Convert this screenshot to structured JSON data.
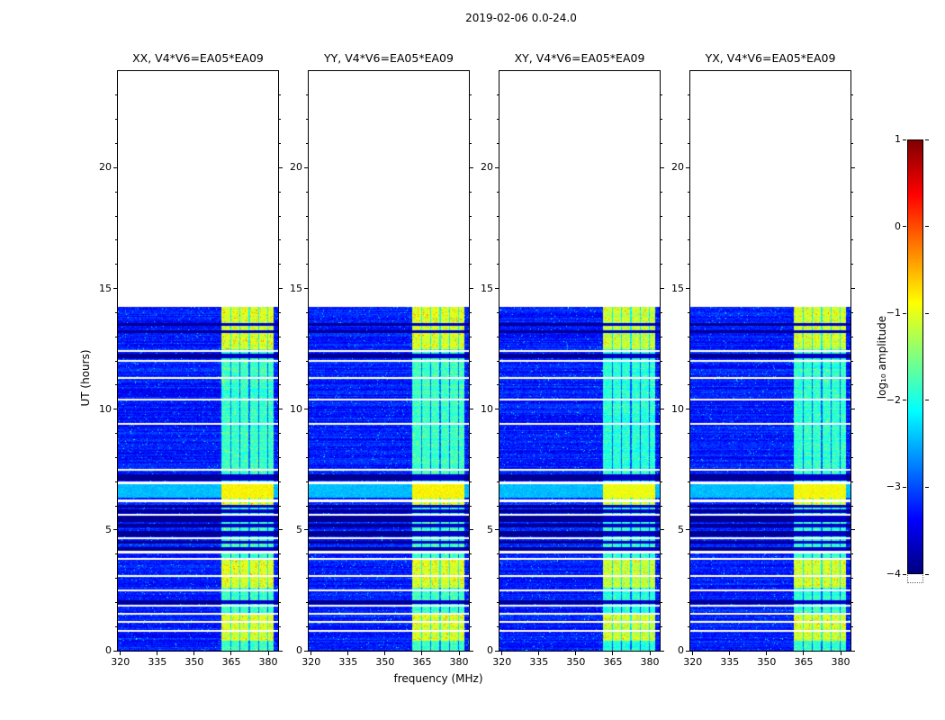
{
  "chart_data": {
    "type": "heatmap",
    "title": "2019-02-06 0.0-24.0",
    "xlabel": "frequency (MHz)",
    "ylabel": "UT (hours)",
    "panels": [
      {
        "label": "XX",
        "title": "XX, V4*V6=EA05*EA09"
      },
      {
        "label": "YY",
        "title": "YY, V4*V6=EA05*EA09"
      },
      {
        "label": "XY",
        "title": "XY, V4*V6=EA05*EA09"
      },
      {
        "label": "YX",
        "title": "YX, V4*V6=EA05*EA09"
      }
    ],
    "x_range": [
      319,
      384
    ],
    "y_range": [
      0,
      24
    ],
    "x_ticks": [
      320,
      335,
      350,
      365,
      380
    ],
    "y_ticks": [
      0,
      5,
      10,
      15,
      20
    ],
    "colorbar": {
      "label": "log₁₀ amplitude",
      "tick_labels": [
        "1",
        "0",
        "−1",
        "−2",
        "−3",
        "−4"
      ],
      "tick_values": [
        1,
        0,
        -1,
        -2,
        -3,
        -4
      ],
      "vmin": -4,
      "vmax": 1
    },
    "colormap": {
      "name": "jet",
      "stops": [
        {
          "pos": 0.0,
          "color": "#000080"
        },
        {
          "pos": 0.125,
          "color": "#0000ff"
        },
        {
          "pos": 0.375,
          "color": "#00ffff"
        },
        {
          "pos": 0.625,
          "color": "#ffff00"
        },
        {
          "pos": 0.875,
          "color": "#ff0000"
        },
        {
          "pos": 1.0,
          "color": "#800000"
        }
      ]
    },
    "data": {
      "observed_hours": [
        0,
        14.25
      ],
      "background_log_amp": -3.25,
      "bright_band_mhz": [
        361,
        382
      ],
      "bright_band_log_amp": -1.85,
      "yellow_log_amp": -1.05,
      "yellow_intervals_hours": [
        [
          0.4,
          1.5
        ],
        [
          2.6,
          3.85
        ],
        [
          6.05,
          6.35
        ],
        [
          12.5,
          14.25
        ]
      ],
      "gap_hours": [
        0.82,
        1.19,
        1.53,
        1.86,
        2.5,
        3.1,
        3.8,
        4.08,
        4.66,
        5.63,
        6.2,
        6.95,
        7.5,
        9.4,
        10.4,
        11.3,
        12.0,
        12.4
      ],
      "dark_intervals_hours": [
        [
          1.95,
          2.1
        ],
        [
          4.15,
          4.3
        ],
        [
          4.42,
          4.55
        ],
        [
          4.75,
          4.95
        ],
        [
          5.1,
          5.24
        ],
        [
          5.34,
          5.58
        ],
        [
          5.72,
          5.86
        ],
        [
          5.92,
          6.04
        ],
        [
          7.05,
          7.32
        ],
        [
          12.1,
          12.3
        ],
        [
          13.16,
          13.26
        ],
        [
          13.46,
          13.56
        ]
      ],
      "cyan_intervals_hours": [
        [
          6.35,
          6.9
        ]
      ],
      "grid_notch_freqs_mhz": [
        364.7,
        368.5,
        372.3,
        376.1,
        379.9
      ]
    }
  }
}
